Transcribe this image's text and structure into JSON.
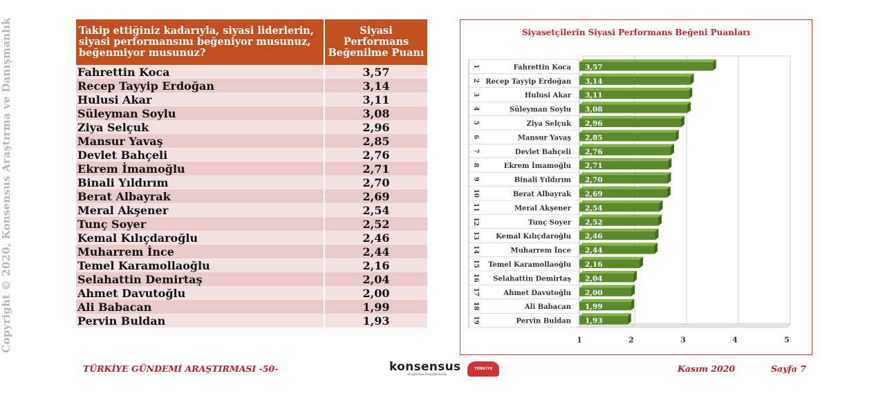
{
  "copyright": "Copyright © 2020, Konsensus Araştırma ve Danışmanlık",
  "table": {
    "question": "Takip ettiğiniz kadarıyla, siyasi liderlerin, siyasi performansını beğeniyor musunuz, beğenmiyor musunuz?",
    "value_header": "Siyasi Performans Beğenilme Puanı",
    "rows": [
      {
        "name": "Fahrettin Koca",
        "score": "3,57"
      },
      {
        "name": "Recep Tayyip Erdoğan",
        "score": "3,14"
      },
      {
        "name": "Hulusi Akar",
        "score": "3,11"
      },
      {
        "name": "Süleyman Soylu",
        "score": "3,08"
      },
      {
        "name": "Ziya Selçuk",
        "score": "2,96"
      },
      {
        "name": "Mansur Yavaş",
        "score": "2,85"
      },
      {
        "name": "Devlet Bahçeli",
        "score": "2,76"
      },
      {
        "name": "Ekrem İmamoğlu",
        "score": "2,71"
      },
      {
        "name": "Binali Yıldırım",
        "score": "2,70"
      },
      {
        "name": "Berat Albayrak",
        "score": "2,69"
      },
      {
        "name": "Meral Akşener",
        "score": "2,54"
      },
      {
        "name": "Tunç Soyer",
        "score": "2,52"
      },
      {
        "name": "Kemal Kılıçdaroğlu",
        "score": "2,46"
      },
      {
        "name": "Muharrem İnce",
        "score": "2,44"
      },
      {
        "name": "Temel Karamollaoğlu",
        "score": "2,16"
      },
      {
        "name": "Selahattin Demirtaş",
        "score": "2,04"
      },
      {
        "name": "Ahmet Davutoğlu",
        "score": "2,00"
      },
      {
        "name": "Ali Babacan",
        "score": "1,99"
      },
      {
        "name": "Pervin Buldan",
        "score": "1,93"
      }
    ]
  },
  "chart_data": {
    "type": "bar",
    "orientation": "horizontal",
    "title": "Siyasetçilerin Siyasi Performans Beğeni Puanları",
    "ranks": [
      "1",
      "2",
      "3",
      "4",
      "5",
      "6",
      "7",
      "8",
      "9",
      "10",
      "11",
      "12",
      "13",
      "14",
      "15",
      "16",
      "17",
      "18",
      "19"
    ],
    "categories": [
      "Fahrettin Koca",
      "Recep Tayyip Erdoğan",
      "Hulusi Akar",
      "Süleyman Soylu",
      "Ziya Selçuk",
      "Mansur Yavaş",
      "Devlet Bahçeli",
      "Ekrem İmamoğlu",
      "Binali Yıldırım",
      "Berat Albayrak",
      "Meral Akşener",
      "Tunç Soyer",
      "Kemal Kılıçdaroğlu",
      "Muharrem İnce",
      "Temel Karamollaoğlu",
      "Selahattin Demirtaş",
      "Ahmet Davutoğlu",
      "Ali Babacan",
      "Pervin Buldan"
    ],
    "values": [
      3.57,
      3.14,
      3.11,
      3.08,
      2.96,
      2.85,
      2.76,
      2.71,
      2.7,
      2.69,
      2.54,
      2.52,
      2.46,
      2.44,
      2.16,
      2.04,
      2.0,
      1.99,
      1.93
    ],
    "value_labels": [
      "3,57",
      "3,14",
      "3,11",
      "3,08",
      "2,96",
      "2,85",
      "2,76",
      "2,71",
      "2,70",
      "2,69",
      "2,54",
      "2,52",
      "2,46",
      "2,44",
      "2,16",
      "2,04",
      "2,00",
      "1,99",
      "1,93"
    ],
    "xticks": [
      "1",
      "2",
      "3",
      "4",
      "5"
    ],
    "xlim": [
      1,
      5
    ],
    "grid": true,
    "bar_color": "#5a8a2b",
    "bar_side_color": "#3f6b1c",
    "bar_top_color": "#86b048"
  },
  "footer": {
    "left": "TÜRKİYE GÜNDEMİ ARAŞTIRMASI -50-",
    "logo": "konsensus",
    "logo_sub": "araştırma danışmanlık",
    "badge": "TÜRKİYE GÜNDEMİ ARAŞTIRMASI",
    "date": "Kasım 2020",
    "page": "Sayfa 7"
  },
  "colors": {
    "header_bg": "#c0501f",
    "row_light": "#f4e2e2",
    "row_dark": "#e9cbc9",
    "footer_text": "#b01f2a",
    "title_red": "#c0282d"
  }
}
